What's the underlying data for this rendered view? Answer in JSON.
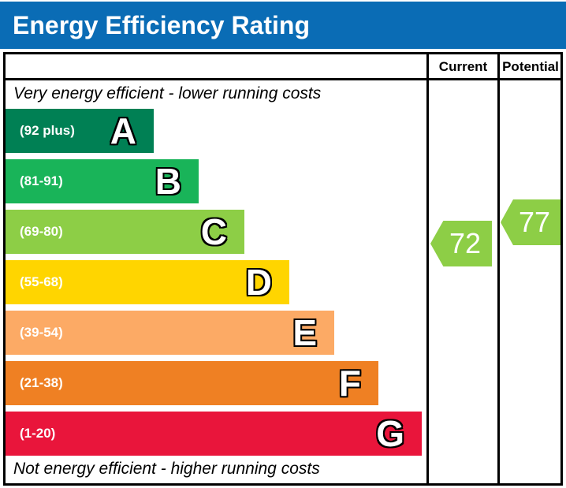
{
  "title": "Energy Efficiency Rating",
  "colors": {
    "header_bg": "#0a6cb5",
    "border": "#000000",
    "band_a": "#008054",
    "band_b": "#19b459",
    "band_c": "#8dce46",
    "band_d": "#ffd500",
    "band_e": "#fcaa65",
    "band_f": "#ef8023",
    "band_g": "#e9153b",
    "arrow_green": "#8dce46"
  },
  "table": {
    "columns": {
      "current_label": "Current",
      "potential_label": "Potential"
    },
    "top_note": "Very energy efficient - lower running costs",
    "bottom_note": "Not energy efficient - higher running costs",
    "bands": [
      {
        "letter": "A",
        "range_label": "(92 plus)",
        "color": "#008054"
      },
      {
        "letter": "B",
        "range_label": "(81-91)",
        "color": "#19b459"
      },
      {
        "letter": "C",
        "range_label": "(69-80)",
        "color": "#8dce46"
      },
      {
        "letter": "D",
        "range_label": "(55-68)",
        "color": "#ffd500"
      },
      {
        "letter": "E",
        "range_label": "(39-54)",
        "color": "#fcaa65"
      },
      {
        "letter": "F",
        "range_label": "(21-38)",
        "color": "#ef8023"
      },
      {
        "letter": "G",
        "range_label": "(1-20)",
        "color": "#e9153b"
      }
    ],
    "current": {
      "value": "72",
      "color": "#8dce46"
    },
    "potential": {
      "value": "77",
      "color": "#8dce46"
    }
  },
  "chart_data": {
    "type": "bar",
    "orientation": "horizontal",
    "title": "Energy Efficiency Rating",
    "categories": [
      "A",
      "B",
      "C",
      "D",
      "E",
      "F",
      "G"
    ],
    "band_labels": [
      "(92 plus)",
      "(81-91)",
      "(69-80)",
      "(55-68)",
      "(39-54)",
      "(21-38)",
      "(1-20)"
    ],
    "band_ranges": [
      [
        92,
        100
      ],
      [
        81,
        91
      ],
      [
        69,
        80
      ],
      [
        55,
        68
      ],
      [
        39,
        54
      ],
      [
        21,
        38
      ],
      [
        1,
        20
      ]
    ],
    "band_colors": [
      "#008054",
      "#19b459",
      "#8dce46",
      "#ffd500",
      "#fcaa65",
      "#ef8023",
      "#e9153b"
    ],
    "series": [
      {
        "name": "Current",
        "value": 72,
        "band": "C"
      },
      {
        "name": "Potential",
        "value": 77,
        "band": "C"
      }
    ],
    "annotations": [
      "Very energy efficient - lower running costs",
      "Not energy efficient - higher running costs"
    ],
    "column_headers": [
      "Current",
      "Potential"
    ],
    "value_scale": [
      1,
      100
    ]
  }
}
